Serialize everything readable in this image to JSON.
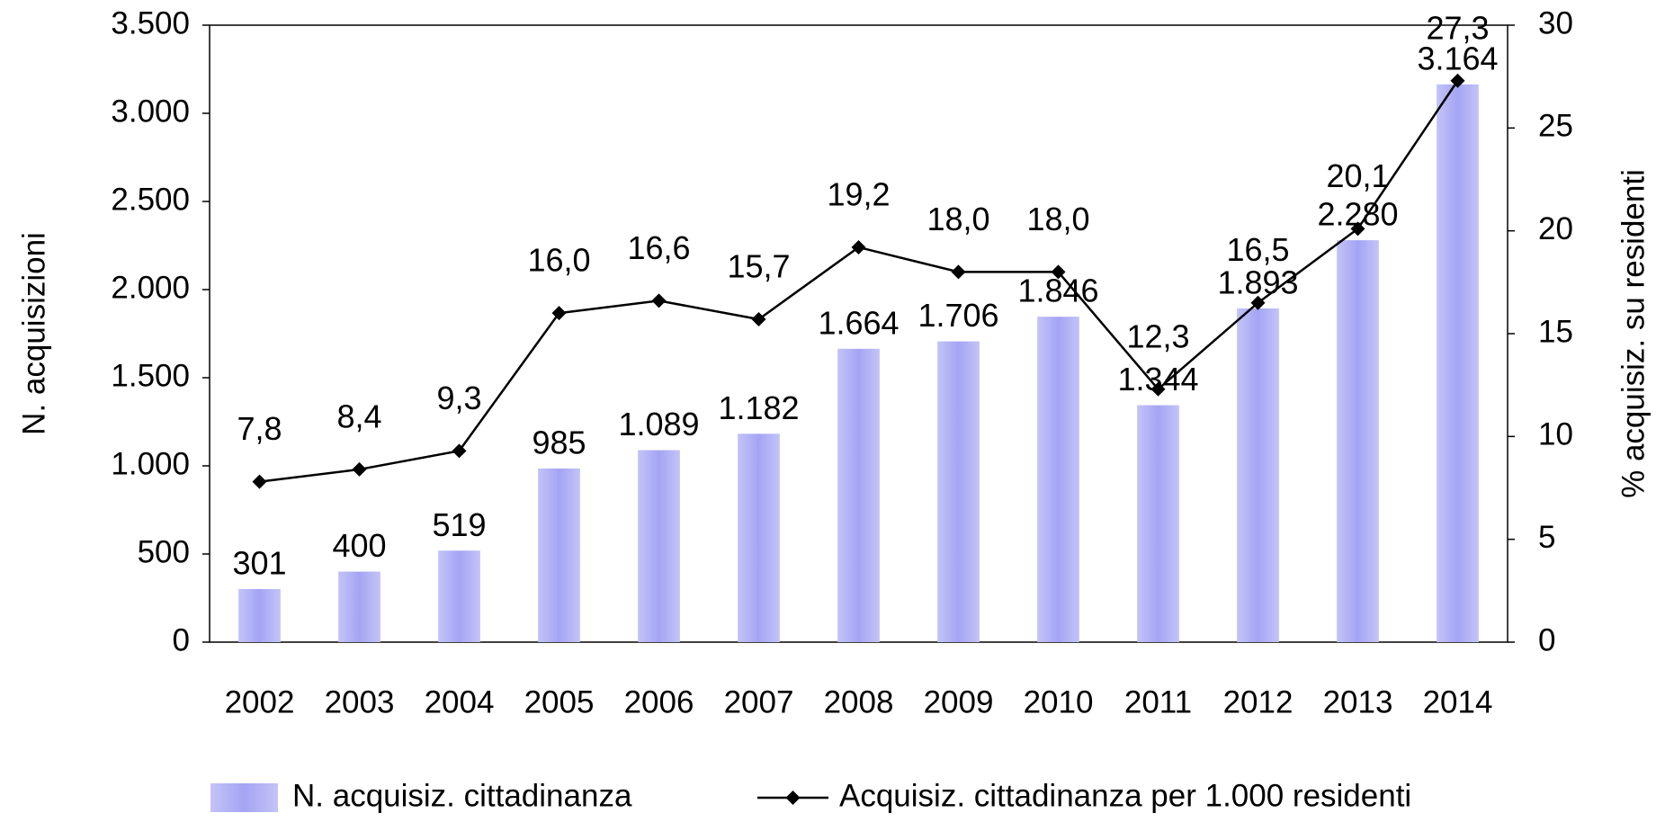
{
  "chart_data": {
    "type": "bar+line",
    "categories": [
      "2002",
      "2003",
      "2004",
      "2005",
      "2006",
      "2007",
      "2008",
      "2009",
      "2010",
      "2011",
      "2012",
      "2013",
      "2014"
    ],
    "series": [
      {
        "name": "N. acquisiz. cittadinanza",
        "type": "bar",
        "color": "#a4a4f4",
        "values": [
          301,
          400,
          519,
          985,
          1089,
          1182,
          1664,
          1706,
          1846,
          1344,
          1893,
          2280,
          3164
        ],
        "value_labels": [
          "301",
          "400",
          "519",
          "985",
          "1.089",
          "1.182",
          "1.664",
          "1.706",
          "1.846",
          "1.344",
          "1.893",
          "2.280",
          "3.164"
        ]
      },
      {
        "name": "Acquisiz. cittadinanza per 1.000 residenti",
        "type": "line",
        "axis": "y2",
        "color": "#000000",
        "values": [
          7.8,
          8.4,
          9.3,
          16.0,
          16.6,
          15.7,
          19.2,
          18.0,
          18.0,
          12.3,
          16.5,
          20.1,
          27.3
        ],
        "value_labels": [
          "7,8",
          "8,4",
          "9,3",
          "16,0",
          "16,6",
          "15,7",
          "19,2",
          "18,0",
          "18,0",
          "12,3",
          "16,5",
          "20,1",
          "27,3"
        ]
      }
    ],
    "y_label": "N. acquisizioni",
    "y2_label": "% acquisiz. su residenti",
    "ylim": [
      0,
      3500
    ],
    "yticks": [
      0,
      {
        "value": 500,
        "label": "500"
      },
      {
        "value": 1000,
        "label": "1.000"
      },
      {
        "value": 1500,
        "label": "1.500"
      },
      {
        "value": 2000,
        "label": "2.000"
      },
      {
        "value": 2500,
        "label": "2.500"
      },
      {
        "value": 3000,
        "label": "3.000"
      },
      {
        "value": 3500,
        "label": "3.500"
      }
    ],
    "y2lim": [
      0,
      30
    ],
    "y2ticks": [
      0,
      5,
      10,
      15,
      20,
      25,
      30
    ],
    "grid": false,
    "legend": "bottom"
  }
}
